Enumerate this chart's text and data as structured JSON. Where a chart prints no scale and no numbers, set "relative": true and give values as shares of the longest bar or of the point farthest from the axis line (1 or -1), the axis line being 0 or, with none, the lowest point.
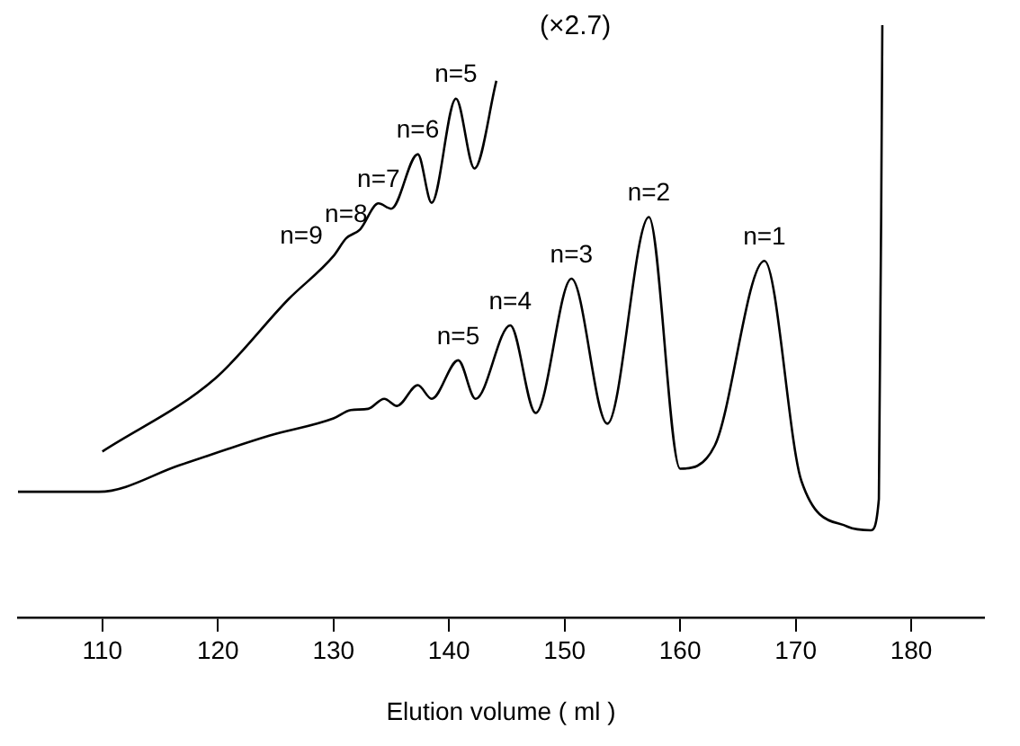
{
  "chart_data": {
    "type": "line",
    "xlabel": "Elution volume ( ml )",
    "relative": true,
    "xlim": [
      102.7,
      186.3
    ],
    "xticks": [
      110,
      120,
      130,
      140,
      150,
      160,
      170,
      180
    ],
    "tick_labels": "x",
    "grid": false,
    "legend": false,
    "marker": "none",
    "line_style": "solid",
    "series": [
      {
        "color": "#000000",
        "x": [
          102.7,
          109.7,
          116.7,
          124.5,
          130,
          131.5,
          133,
          134.4,
          135.5,
          137.3,
          138.5,
          140.8,
          142.3,
          145.3,
          147.5,
          150.6,
          153.7,
          157.3,
          160,
          163,
          167.3,
          170.5,
          174.5,
          176.5,
          177.2,
          177.5
        ],
        "values": [
          0.212,
          0.212,
          0.257,
          0.307,
          0.336,
          0.35,
          0.352,
          0.369,
          0.357,
          0.392,
          0.369,
          0.434,
          0.369,
          0.493,
          0.345,
          0.572,
          0.327,
          0.676,
          0.251,
          0.29,
          0.602,
          0.23,
          0.153,
          0.147,
          0.2,
          1.0
        ]
      },
      {
        "color": "#000000",
        "x": [
          110,
          119.8,
          126.1,
          130,
          131.1,
          132.3,
          133.9,
          135,
          137.3,
          138.5,
          140.6,
          142.2,
          144.1
        ],
        "values": [
          0.28,
          0.404,
          0.537,
          0.61,
          0.64,
          0.655,
          0.699,
          0.69,
          0.782,
          0.7,
          0.876,
          0.758,
          0.906
        ]
      }
    ],
    "annotations": [
      {
        "text": "n=1",
        "x": 167.3,
        "y": 0.602
      },
      {
        "text": "n=2",
        "x": 157.3,
        "y": 0.676
      },
      {
        "text": "n=3",
        "x": 150.6,
        "y": 0.572
      },
      {
        "text": "n=4",
        "x": 145.3,
        "y": 0.493
      },
      {
        "text": "n=5",
        "x": 140.8,
        "y": 0.434
      },
      {
        "text": "n=5",
        "x": 140.6,
        "y": 0.876
      },
      {
        "text": "n=6",
        "x": 137.3,
        "y": 0.782
      },
      {
        "text": "n=7",
        "x": 133.9,
        "y": 0.699
      },
      {
        "text": "n=8",
        "x": 131.1,
        "y": 0.64
      },
      {
        "text": "n=9",
        "x": 130,
        "y": 0.61
      },
      "(×2.7)"
    ]
  }
}
